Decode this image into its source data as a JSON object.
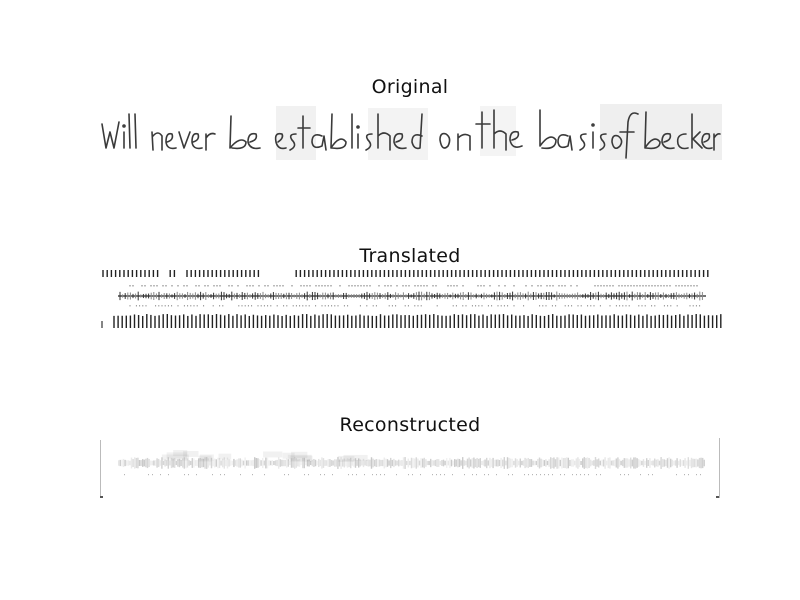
{
  "panels": [
    {
      "title": "Original",
      "handwriting_text": "will never be established on the basis of beckers"
    },
    {
      "title": "Translated"
    },
    {
      "title": "Reconstructed"
    }
  ]
}
